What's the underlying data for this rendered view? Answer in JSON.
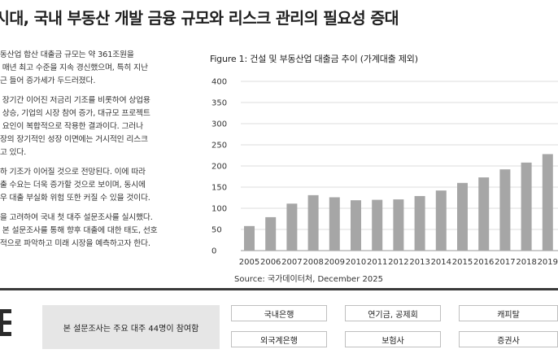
{
  "title": "시대, 국내 부동산 개발 금융 규모와 리스크 관리의 필요성 증대",
  "body": {
    "paragraphs": [
      [
        "부동산업 합산 대출금 규모는 약 361조원을",
        "로 매년 최고 수준을 지속 경신했으며, 특히 지난",
        "최근 들어 증가세가 두드러졌다."
      ],
      [
        "은 장기간 이어진 저금리 기조를 비롯하여 상업용",
        "격 상승, 기업의 시장 참여 증가, 대규모 프로젝트",
        "러 요인이 복합적으로 작용한 결과이다. 그러나",
        "시장의 장기적인 성장 이면에는 거시적인 리스크",
        "되고 있다."
      ],
      [
        "인하 기조가 이어질 것으로 전망된다. 이에 따라",
        "대출 수요는 더욱 증가할 것으로 보이며, 동시에",
        "경우 대출 부실화 위험 또한 커질 수 있을 것이다."
      ],
      [
        "황을 고려하여 국내 첫 대주 설문조사를 실시했다.",
        "한 본 설문조사를 통해 향후 대출에 대한 태도, 선호",
        "괄적으로 파악하고 미래 시장을 예측하고자 한다."
      ]
    ]
  },
  "figure": {
    "title": "Figure 1: 건설 및 부동산업 대출금 추이 (가계대출 제외)",
    "source": "Source: 국가데이터처, December 2025"
  },
  "chart_data": {
    "type": "bar",
    "categories": [
      "2005",
      "2006",
      "2007",
      "2008",
      "2009",
      "2010",
      "2011",
      "2012",
      "2013",
      "2014",
      "2015",
      "2016",
      "2017",
      "2018",
      "2019"
    ],
    "values": [
      58,
      79,
      111,
      131,
      126,
      119,
      120,
      121,
      129,
      142,
      160,
      173,
      192,
      208,
      228
    ],
    "ylim": [
      0,
      400
    ],
    "yticks": [
      0,
      50,
      100,
      150,
      200,
      250,
      300,
      350,
      400
    ],
    "grid": true,
    "bar_color": "#a6a6a6"
  },
  "bottom": {
    "note": "본 설문조사는 주요 대주 44명이 참여함",
    "chips": [
      "국내은행",
      "연기금, 공제회",
      "캐피탈",
      "외국계은행",
      "보험사",
      "증권사"
    ]
  }
}
